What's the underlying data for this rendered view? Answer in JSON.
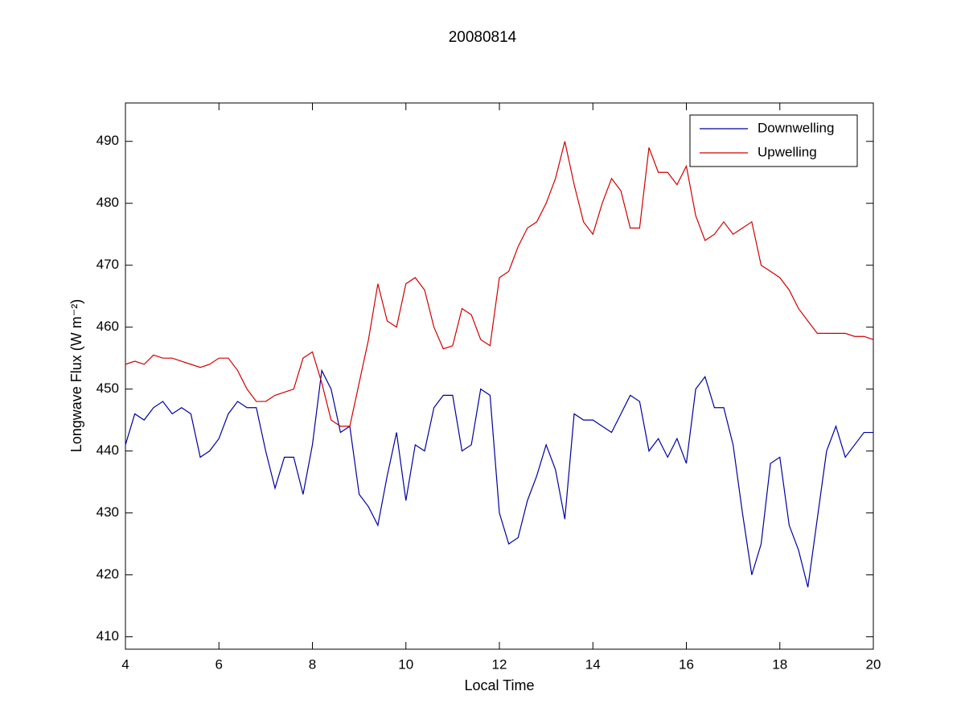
{
  "chart_data": {
    "type": "line",
    "title": "20080814",
    "xlabel": "Local Time",
    "ylabel": "Longwave Flux (W m⁻²)",
    "x": [
      4.0,
      4.2,
      4.4,
      4.6,
      4.8,
      5.0,
      5.2,
      5.4,
      5.6,
      5.8,
      6.0,
      6.2,
      6.4,
      6.6,
      6.8,
      7.0,
      7.2,
      7.4,
      7.6,
      7.8,
      8.0,
      8.2,
      8.4,
      8.6,
      8.8,
      9.0,
      9.2,
      9.4,
      9.6,
      9.8,
      10.0,
      10.2,
      10.4,
      10.6,
      10.8,
      11.0,
      11.2,
      11.4,
      11.6,
      11.8,
      12.0,
      12.2,
      12.4,
      12.6,
      12.8,
      13.0,
      13.2,
      13.4,
      13.6,
      13.8,
      14.0,
      14.2,
      14.4,
      14.6,
      14.8,
      15.0,
      15.2,
      15.4,
      15.6,
      15.8,
      16.0,
      16.2,
      16.4,
      16.6,
      16.8,
      17.0,
      17.2,
      17.4,
      17.6,
      17.8,
      18.0,
      18.2,
      18.4,
      18.6,
      18.8,
      19.0,
      19.2,
      19.4,
      19.6,
      19.8,
      20.0
    ],
    "series": [
      {
        "name": "Downwelling",
        "color": "#0000a0",
        "values": [
          441,
          446,
          445,
          447,
          448,
          446,
          447,
          446,
          439,
          440,
          442,
          446,
          448,
          447,
          447,
          440,
          434,
          439,
          439,
          433,
          441,
          453,
          450,
          443,
          444,
          433,
          431,
          428,
          436,
          443,
          432,
          441,
          440,
          447,
          449,
          449,
          440,
          441,
          450,
          449,
          430,
          425,
          426,
          432,
          436,
          441,
          437,
          429,
          446,
          445,
          445,
          444,
          443,
          446,
          449,
          448,
          440,
          442,
          439,
          442,
          438,
          450,
          452,
          447,
          447,
          441,
          430,
          420,
          425,
          438,
          439,
          428,
          424,
          418,
          429,
          440,
          444,
          439,
          441,
          443,
          443
        ]
      },
      {
        "name": "Upwelling",
        "color": "#d00000",
        "values": [
          454,
          454.5,
          454,
          455.5,
          455,
          455,
          454.5,
          454,
          453.5,
          454,
          455,
          455,
          453,
          450,
          448,
          448,
          449,
          449.5,
          450,
          455,
          456,
          451,
          445,
          444,
          444,
          451,
          458,
          467,
          461,
          460,
          467,
          468,
          466,
          460,
          456.5,
          457,
          463,
          462,
          458,
          457,
          468,
          469,
          473,
          476,
          477,
          480,
          484,
          490,
          483,
          477,
          475,
          480,
          484,
          482,
          476,
          476,
          489,
          485,
          485,
          483,
          486,
          478,
          474,
          475,
          477,
          475,
          476,
          477,
          470,
          469,
          468,
          466,
          463,
          461,
          459,
          459,
          459,
          459,
          458.5,
          458.5,
          458
        ]
      }
    ],
    "xlim": [
      4,
      20
    ],
    "xticks": [
      4,
      6,
      8,
      10,
      12,
      14,
      16,
      18,
      20
    ],
    "ylim": [
      408,
      496.2
    ],
    "yticks": [
      410,
      420,
      430,
      440,
      450,
      460,
      470,
      480,
      490
    ],
    "legend": "top-right"
  }
}
